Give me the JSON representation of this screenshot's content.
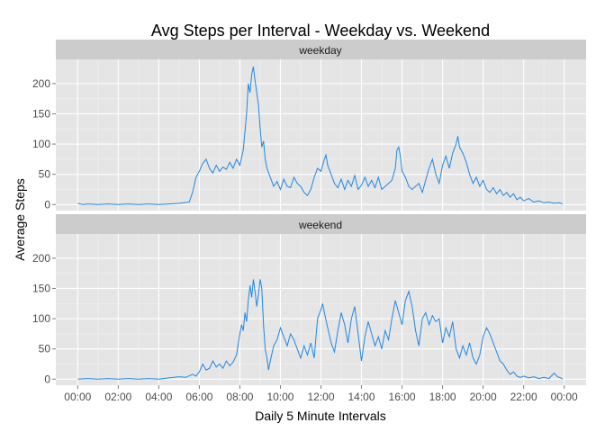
{
  "chart_data": {
    "type": "line",
    "title": "Avg Steps per Interval - Weekday vs. Weekend",
    "xlabel": "Daily 5 Minute Intervals",
    "ylabel": "Average Steps",
    "xlim": [
      "00:00",
      "24:00"
    ],
    "ylim": [
      -10,
      240
    ],
    "x_ticks": [
      "00:00",
      "02:00",
      "04:00",
      "06:00",
      "08:00",
      "10:00",
      "12:00",
      "14:00",
      "16:00",
      "18:00",
      "20:00",
      "22:00",
      "00:00"
    ],
    "y_ticks": [
      0,
      50,
      100,
      150,
      200
    ],
    "grid": true,
    "line_color": "#1E88E5",
    "panels": [
      {
        "name": "weekday",
        "points": [
          [
            "00:00",
            2
          ],
          [
            "00:15",
            0
          ],
          [
            "00:30",
            1
          ],
          [
            "01:00",
            0
          ],
          [
            "01:30",
            1
          ],
          [
            "02:00",
            0
          ],
          [
            "02:30",
            1
          ],
          [
            "03:00",
            0
          ],
          [
            "03:30",
            1
          ],
          [
            "04:00",
            0
          ],
          [
            "04:30",
            1
          ],
          [
            "05:00",
            2
          ],
          [
            "05:15",
            3
          ],
          [
            "05:30",
            4
          ],
          [
            "05:40",
            20
          ],
          [
            "05:50",
            45
          ],
          [
            "06:00",
            55
          ],
          [
            "06:10",
            68
          ],
          [
            "06:20",
            75
          ],
          [
            "06:30",
            60
          ],
          [
            "06:40",
            52
          ],
          [
            "06:50",
            65
          ],
          [
            "07:00",
            55
          ],
          [
            "07:10",
            62
          ],
          [
            "07:20",
            58
          ],
          [
            "07:30",
            70
          ],
          [
            "07:40",
            60
          ],
          [
            "07:50",
            75
          ],
          [
            "08:00",
            65
          ],
          [
            "08:10",
            90
          ],
          [
            "08:20",
            150
          ],
          [
            "08:25",
            200
          ],
          [
            "08:30",
            185
          ],
          [
            "08:35",
            215
          ],
          [
            "08:40",
            228
          ],
          [
            "08:45",
            205
          ],
          [
            "08:50",
            185
          ],
          [
            "08:55",
            165
          ],
          [
            "09:00",
            125
          ],
          [
            "09:05",
            95
          ],
          [
            "09:10",
            105
          ],
          [
            "09:15",
            75
          ],
          [
            "09:20",
            60
          ],
          [
            "09:30",
            45
          ],
          [
            "09:40",
            30
          ],
          [
            "09:50",
            38
          ],
          [
            "10:00",
            25
          ],
          [
            "10:10",
            42
          ],
          [
            "10:20",
            30
          ],
          [
            "10:30",
            28
          ],
          [
            "10:40",
            45
          ],
          [
            "10:50",
            35
          ],
          [
            "11:00",
            30
          ],
          [
            "11:10",
            20
          ],
          [
            "11:20",
            15
          ],
          [
            "11:30",
            25
          ],
          [
            "11:40",
            45
          ],
          [
            "11:50",
            60
          ],
          [
            "12:00",
            55
          ],
          [
            "12:10",
            75
          ],
          [
            "12:15",
            82
          ],
          [
            "12:20",
            65
          ],
          [
            "12:30",
            50
          ],
          [
            "12:40",
            35
          ],
          [
            "12:50",
            28
          ],
          [
            "13:00",
            42
          ],
          [
            "13:10",
            25
          ],
          [
            "13:20",
            40
          ],
          [
            "13:30",
            30
          ],
          [
            "13:40",
            48
          ],
          [
            "13:50",
            25
          ],
          [
            "14:00",
            32
          ],
          [
            "14:10",
            45
          ],
          [
            "14:20",
            30
          ],
          [
            "14:30",
            40
          ],
          [
            "14:40",
            28
          ],
          [
            "14:50",
            45
          ],
          [
            "15:00",
            25
          ],
          [
            "15:10",
            30
          ],
          [
            "15:20",
            35
          ],
          [
            "15:30",
            40
          ],
          [
            "15:40",
            60
          ],
          [
            "15:45",
            90
          ],
          [
            "15:50",
            95
          ],
          [
            "15:55",
            80
          ],
          [
            "16:00",
            55
          ],
          [
            "16:10",
            45
          ],
          [
            "16:20",
            30
          ],
          [
            "16:30",
            25
          ],
          [
            "16:40",
            30
          ],
          [
            "16:50",
            35
          ],
          [
            "17:00",
            20
          ],
          [
            "17:10",
            40
          ],
          [
            "17:20",
            60
          ],
          [
            "17:30",
            75
          ],
          [
            "17:40",
            50
          ],
          [
            "17:50",
            35
          ],
          [
            "18:00",
            65
          ],
          [
            "18:10",
            80
          ],
          [
            "18:20",
            60
          ],
          [
            "18:30",
            85
          ],
          [
            "18:40",
            100
          ],
          [
            "18:45",
            113
          ],
          [
            "18:50",
            95
          ],
          [
            "19:00",
            85
          ],
          [
            "19:10",
            70
          ],
          [
            "19:20",
            50
          ],
          [
            "19:30",
            35
          ],
          [
            "19:40",
            45
          ],
          [
            "19:50",
            30
          ],
          [
            "20:00",
            40
          ],
          [
            "20:10",
            25
          ],
          [
            "20:20",
            20
          ],
          [
            "20:30",
            28
          ],
          [
            "20:40",
            18
          ],
          [
            "20:50",
            25
          ],
          [
            "21:00",
            15
          ],
          [
            "21:10",
            20
          ],
          [
            "21:20",
            12
          ],
          [
            "21:30",
            18
          ],
          [
            "21:40",
            8
          ],
          [
            "21:50",
            12
          ],
          [
            "22:00",
            6
          ],
          [
            "22:15",
            10
          ],
          [
            "22:30",
            4
          ],
          [
            "22:45",
            6
          ],
          [
            "23:00",
            3
          ],
          [
            "23:15",
            4
          ],
          [
            "23:30",
            2
          ],
          [
            "23:45",
            3
          ],
          [
            "23:55",
            1
          ]
        ]
      },
      {
        "name": "weekend",
        "points": [
          [
            "00:00",
            0
          ],
          [
            "00:30",
            1
          ],
          [
            "01:00",
            0
          ],
          [
            "01:30",
            1
          ],
          [
            "02:00",
            0
          ],
          [
            "02:30",
            1
          ],
          [
            "03:00",
            0
          ],
          [
            "03:30",
            1
          ],
          [
            "04:00",
            0
          ],
          [
            "04:30",
            2
          ],
          [
            "05:00",
            4
          ],
          [
            "05:20",
            3
          ],
          [
            "05:40",
            8
          ],
          [
            "05:50",
            5
          ],
          [
            "06:00",
            12
          ],
          [
            "06:10",
            25
          ],
          [
            "06:20",
            15
          ],
          [
            "06:30",
            18
          ],
          [
            "06:40",
            30
          ],
          [
            "06:50",
            20
          ],
          [
            "07:00",
            25
          ],
          [
            "07:10",
            18
          ],
          [
            "07:20",
            30
          ],
          [
            "07:30",
            22
          ],
          [
            "07:40",
            28
          ],
          [
            "07:50",
            40
          ],
          [
            "08:00",
            75
          ],
          [
            "08:05",
            90
          ],
          [
            "08:10",
            80
          ],
          [
            "08:15",
            110
          ],
          [
            "08:20",
            95
          ],
          [
            "08:25",
            130
          ],
          [
            "08:30",
            155
          ],
          [
            "08:35",
            135
          ],
          [
            "08:40",
            165
          ],
          [
            "08:45",
            145
          ],
          [
            "08:50",
            120
          ],
          [
            "08:55",
            140
          ],
          [
            "09:00",
            165
          ],
          [
            "09:05",
            150
          ],
          [
            "09:10",
            90
          ],
          [
            "09:15",
            50
          ],
          [
            "09:20",
            35
          ],
          [
            "09:25",
            15
          ],
          [
            "09:30",
            30
          ],
          [
            "09:40",
            55
          ],
          [
            "09:50",
            65
          ],
          [
            "10:00",
            85
          ],
          [
            "10:10",
            70
          ],
          [
            "10:20",
            55
          ],
          [
            "10:30",
            75
          ],
          [
            "10:40",
            65
          ],
          [
            "10:50",
            50
          ],
          [
            "11:00",
            35
          ],
          [
            "11:10",
            55
          ],
          [
            "11:20",
            40
          ],
          [
            "11:30",
            60
          ],
          [
            "11:40",
            35
          ],
          [
            "11:50",
            100
          ],
          [
            "12:00",
            115
          ],
          [
            "12:05",
            125
          ],
          [
            "12:10",
            110
          ],
          [
            "12:20",
            85
          ],
          [
            "12:30",
            60
          ],
          [
            "12:40",
            45
          ],
          [
            "12:50",
            80
          ],
          [
            "13:00",
            110
          ],
          [
            "13:10",
            90
          ],
          [
            "13:20",
            60
          ],
          [
            "13:30",
            100
          ],
          [
            "13:40",
            120
          ],
          [
            "13:50",
            75
          ],
          [
            "14:00",
            30
          ],
          [
            "14:10",
            70
          ],
          [
            "14:20",
            95
          ],
          [
            "14:30",
            75
          ],
          [
            "14:40",
            55
          ],
          [
            "14:50",
            70
          ],
          [
            "15:00",
            50
          ],
          [
            "15:10",
            80
          ],
          [
            "15:20",
            65
          ],
          [
            "15:30",
            100
          ],
          [
            "15:40",
            130
          ],
          [
            "15:50",
            110
          ],
          [
            "16:00",
            90
          ],
          [
            "16:10",
            130
          ],
          [
            "16:20",
            145
          ],
          [
            "16:30",
            120
          ],
          [
            "16:40",
            80
          ],
          [
            "16:50",
            55
          ],
          [
            "17:00",
            100
          ],
          [
            "17:10",
            110
          ],
          [
            "17:20",
            90
          ],
          [
            "17:30",
            105
          ],
          [
            "17:40",
            95
          ],
          [
            "17:50",
            100
          ],
          [
            "18:00",
            60
          ],
          [
            "18:10",
            85
          ],
          [
            "18:20",
            70
          ],
          [
            "18:30",
            95
          ],
          [
            "18:40",
            50
          ],
          [
            "18:50",
            35
          ],
          [
            "19:00",
            55
          ],
          [
            "19:10",
            40
          ],
          [
            "19:20",
            60
          ],
          [
            "19:30",
            35
          ],
          [
            "19:40",
            25
          ],
          [
            "19:50",
            40
          ],
          [
            "20:00",
            70
          ],
          [
            "20:10",
            85
          ],
          [
            "20:20",
            75
          ],
          [
            "20:30",
            60
          ],
          [
            "20:40",
            45
          ],
          [
            "20:50",
            30
          ],
          [
            "21:00",
            25
          ],
          [
            "21:10",
            15
          ],
          [
            "21:20",
            8
          ],
          [
            "21:30",
            12
          ],
          [
            "21:40",
            5
          ],
          [
            "21:50",
            3
          ],
          [
            "22:00",
            5
          ],
          [
            "22:15",
            2
          ],
          [
            "22:30",
            4
          ],
          [
            "22:45",
            1
          ],
          [
            "23:00",
            3
          ],
          [
            "23:15",
            1
          ],
          [
            "23:30",
            10
          ],
          [
            "23:40",
            4
          ],
          [
            "23:50",
            2
          ],
          [
            "23:55",
            0
          ]
        ]
      }
    ]
  }
}
